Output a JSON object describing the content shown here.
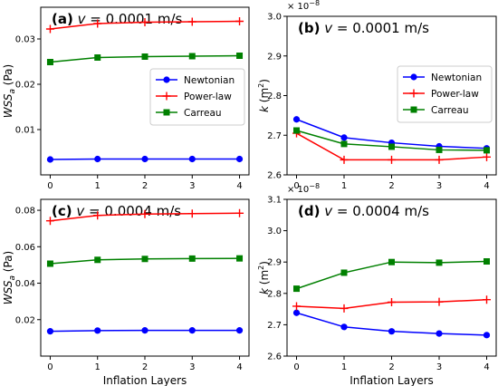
{
  "chart_data": [
    {
      "type": "line",
      "panel": "(a)",
      "title": "v = 0.0001 m/s",
      "title_parts": {
        "letter": "(a)",
        "var": "v",
        "rest": " = 0.0001 m/s"
      },
      "xlabel": "",
      "ylabel": "WSSa (Pa)",
      "ylabel_parts": {
        "main": "WSS",
        "sub": "a",
        "unit": " (Pa)"
      },
      "x": [
        0,
        1,
        2,
        3,
        4
      ],
      "xticks": [
        "0",
        "1",
        "2",
        "3",
        "4"
      ],
      "xlim": [
        -0.2,
        4.2
      ],
      "ylim": [
        0,
        0.037
      ],
      "yticks": [
        0.01,
        0.02,
        0.03
      ],
      "ytick_labels": [
        "0.01",
        "0.02",
        "0.03"
      ],
      "legend": {
        "position": "center-right",
        "entries": [
          "Newtonian",
          "Power-law",
          "Carreau"
        ]
      },
      "series": [
        {
          "name": "Newtonian",
          "color": "#0000ff",
          "marker": "circle",
          "values": [
            0.0034,
            0.0035,
            0.0035,
            0.0035,
            0.0035
          ]
        },
        {
          "name": "Power-law",
          "color": "#ff0000",
          "marker": "plus",
          "values": [
            0.0322,
            0.0334,
            0.0337,
            0.0338,
            0.0339
          ]
        },
        {
          "name": "Carreau",
          "color": "#008000",
          "marker": "square",
          "values": [
            0.0249,
            0.0259,
            0.0261,
            0.0262,
            0.0263
          ]
        }
      ]
    },
    {
      "type": "line",
      "panel": "(b)",
      "title": "v = 0.0001 m/s",
      "title_parts": {
        "letter": "(b)",
        "var": "v",
        "rest": " = 0.0001 m/s"
      },
      "xlabel": "",
      "ylabel": "k (m2)",
      "ylabel_parts": {
        "main": "k",
        "unit_pre": " (m",
        "sup": "2",
        "unit_post": ")"
      },
      "scale_note": "1e-8",
      "x": [
        0,
        1,
        2,
        3,
        4
      ],
      "xticks": [
        "0",
        "1",
        "2",
        "3",
        "4"
      ],
      "xlim": [
        -0.2,
        4.2
      ],
      "ylim": [
        2.6,
        3.0
      ],
      "yticks": [
        2.6,
        2.7,
        2.8,
        2.9,
        3.0
      ],
      "ytick_labels": [
        "2.6",
        "2.7",
        "2.8",
        "2.9",
        "3.0"
      ],
      "legend": {
        "position": "upper-right",
        "entries": [
          "Newtonian",
          "Power-law",
          "Carreau"
        ]
      },
      "series": [
        {
          "name": "Newtonian",
          "color": "#0000ff",
          "marker": "circle",
          "values": [
            2.74,
            2.694,
            2.681,
            2.672,
            2.667
          ]
        },
        {
          "name": "Power-law",
          "color": "#ff0000",
          "marker": "plus",
          "values": [
            2.705,
            2.638,
            2.638,
            2.638,
            2.645
          ]
        },
        {
          "name": "Carreau",
          "color": "#008000",
          "marker": "square",
          "values": [
            2.712,
            2.678,
            2.671,
            2.663,
            2.662
          ]
        }
      ]
    },
    {
      "type": "line",
      "panel": "(c)",
      "title": "v = 0.0004 m/s",
      "title_parts": {
        "letter": "(c)",
        "var": "v",
        "rest": " = 0.0004 m/s"
      },
      "xlabel": "Inflation Layers",
      "ylabel": "WSSa (Pa)",
      "ylabel_parts": {
        "main": "WSS",
        "sub": "a",
        "unit": " (Pa)"
      },
      "x": [
        0,
        1,
        2,
        3,
        4
      ],
      "xticks": [
        "0",
        "1",
        "2",
        "3",
        "4"
      ],
      "xlim": [
        -0.2,
        4.2
      ],
      "ylim": [
        0,
        0.086
      ],
      "yticks": [
        0.02,
        0.04,
        0.06,
        0.08
      ],
      "ytick_labels": [
        "0.02",
        "0.04",
        "0.06",
        "0.08"
      ],
      "series": [
        {
          "name": "Newtonian",
          "color": "#0000ff",
          "marker": "circle",
          "values": [
            0.0136,
            0.014,
            0.0141,
            0.0141,
            0.0141
          ]
        },
        {
          "name": "Power-law",
          "color": "#ff0000",
          "marker": "plus",
          "values": [
            0.0742,
            0.0772,
            0.0779,
            0.0782,
            0.0784
          ]
        },
        {
          "name": "Carreau",
          "color": "#008000",
          "marker": "square",
          "values": [
            0.0507,
            0.0528,
            0.0533,
            0.0535,
            0.0536
          ]
        }
      ]
    },
    {
      "type": "line",
      "panel": "(d)",
      "title": "v = 0.0004 m/s",
      "title_parts": {
        "letter": "(d)",
        "var": "v",
        "rest": " = 0.0004 m/s"
      },
      "xlabel": "Inflation Layers",
      "ylabel": "k (m2)",
      "ylabel_parts": {
        "main": "k",
        "unit_pre": " (m",
        "sup": "2",
        "unit_post": ")"
      },
      "scale_note": "1e-8",
      "x": [
        0,
        1,
        2,
        3,
        4
      ],
      "xticks": [
        "0",
        "1",
        "2",
        "3",
        "4"
      ],
      "xlim": [
        -0.2,
        4.2
      ],
      "ylim": [
        2.6,
        3.1
      ],
      "yticks": [
        2.6,
        2.7,
        2.8,
        2.9,
        3.0,
        3.1
      ],
      "ytick_labels": [
        "2.6",
        "2.7",
        "2.8",
        "2.9",
        "3.0",
        "3.1"
      ],
      "series": [
        {
          "name": "Newtonian",
          "color": "#0000ff",
          "marker": "circle",
          "values": [
            2.738,
            2.693,
            2.679,
            2.672,
            2.667
          ]
        },
        {
          "name": "Power-law",
          "color": "#ff0000",
          "marker": "plus",
          "values": [
            2.759,
            2.752,
            2.772,
            2.773,
            2.78
          ]
        },
        {
          "name": "Carreau",
          "color": "#008000",
          "marker": "square",
          "values": [
            2.815,
            2.866,
            2.9,
            2.898,
            2.902
          ]
        }
      ]
    }
  ]
}
